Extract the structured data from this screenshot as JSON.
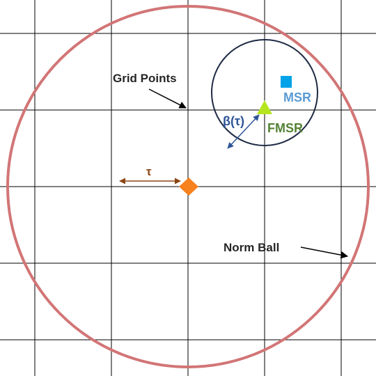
{
  "labels": {
    "grid_points": "Grid Points",
    "norm_ball": "Norm Ball",
    "tau": "τ",
    "beta_tau": "β(τ)",
    "msr": "MSR",
    "fmsr": "FMSR"
  },
  "colors": {
    "grid_line": "#000000",
    "norm_ball": "#d27576",
    "inner_circle": "#1f2a44",
    "tau_arrow": "#8b4513",
    "beta_arrow": "#2f5597",
    "grid_point_marker": "#f7801f",
    "msr_marker": "#00a2e8",
    "msr_text": "#5b9bd5",
    "fmsr_marker": "#b5e61d",
    "fmsr_text": "#548235",
    "label_text": "#262626"
  },
  "markers": {
    "grid_point": "orange-diamond",
    "msr": "blue-square",
    "fmsr": "green-triangle"
  }
}
